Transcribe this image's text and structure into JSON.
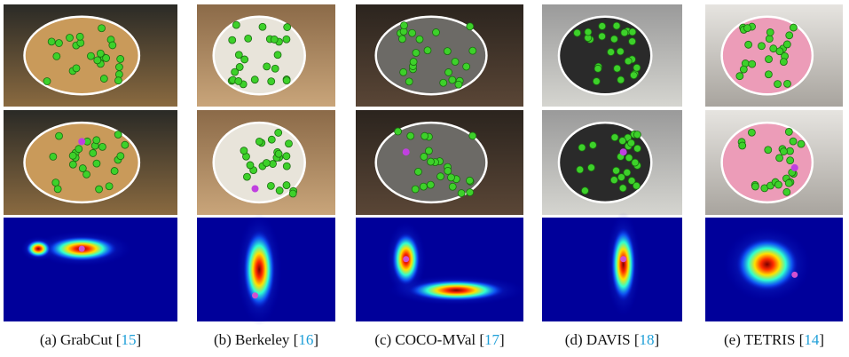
{
  "figure": {
    "panels": [
      {
        "caption": [
          "(a) GrabCut [",
          "15",
          "]"
        ]
      },
      {
        "caption": [
          "(b) Berkeley [",
          "16",
          "]"
        ]
      },
      {
        "caption": [
          "(c) COCO-MVal [",
          "17",
          "]"
        ]
      },
      {
        "caption": [
          "(d) DAVIS [",
          "18",
          "]"
        ]
      },
      {
        "caption": [
          "(e) TETRIS [",
          "14",
          "]"
        ]
      }
    ]
  }
}
